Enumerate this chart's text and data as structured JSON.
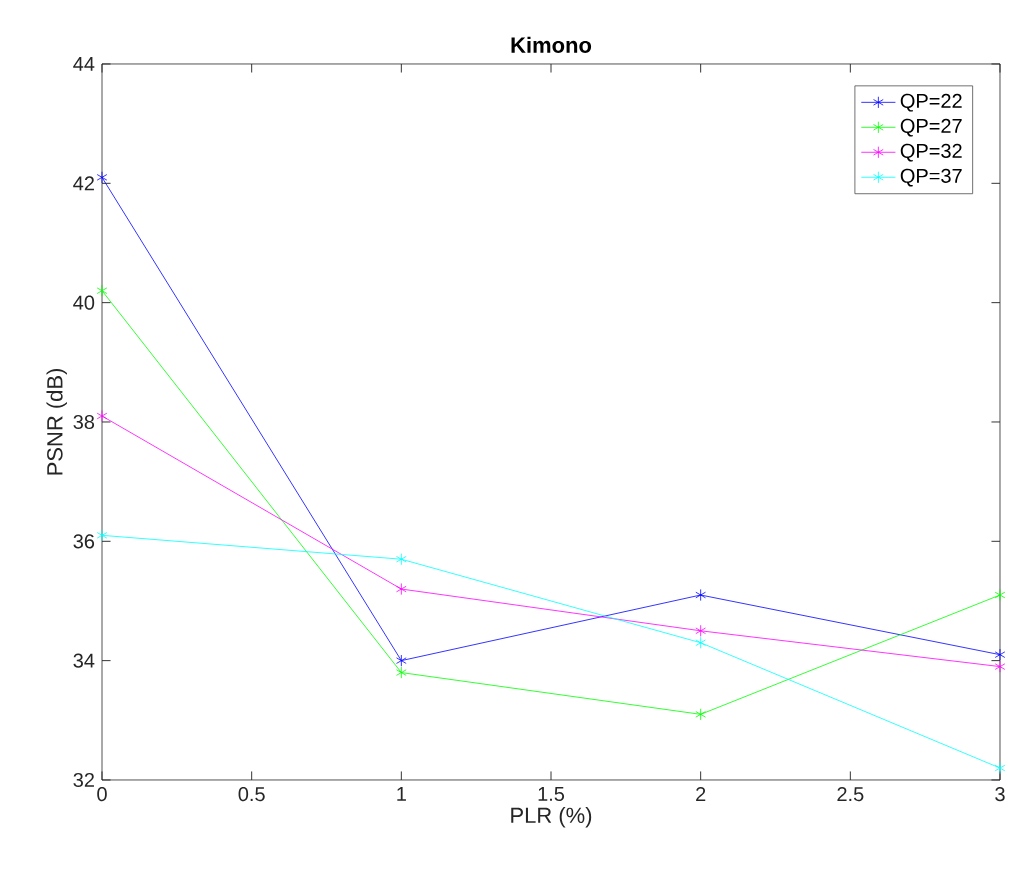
{
  "chart_data": {
    "type": "line",
    "title": "Kimono",
    "xlabel": "PLR (%)",
    "ylabel": "PSNR (dB)",
    "x": [
      0,
      1,
      2,
      3
    ],
    "series": [
      {
        "name": "QP=22",
        "color": "#0000ff",
        "values": [
          42.1,
          34.0,
          35.1,
          34.1
        ]
      },
      {
        "name": "QP=27",
        "color": "#00ff00",
        "values": [
          40.2,
          33.8,
          33.1,
          35.1
        ]
      },
      {
        "name": "QP=32",
        "color": "#ff00ff",
        "values": [
          38.1,
          35.2,
          34.5,
          33.9
        ]
      },
      {
        "name": "QP=37",
        "color": "#00ffff",
        "values": [
          36.1,
          35.7,
          34.3,
          32.2
        ]
      }
    ],
    "xlim": [
      0,
      3
    ],
    "ylim": [
      32,
      44
    ],
    "xticks": [
      0,
      0.5,
      1,
      1.5,
      2,
      2.5,
      3
    ],
    "yticks": [
      32,
      34,
      36,
      38,
      40,
      42,
      44
    ],
    "grid": false,
    "legend": "top right",
    "marker": "cross",
    "line_style": "solid"
  }
}
